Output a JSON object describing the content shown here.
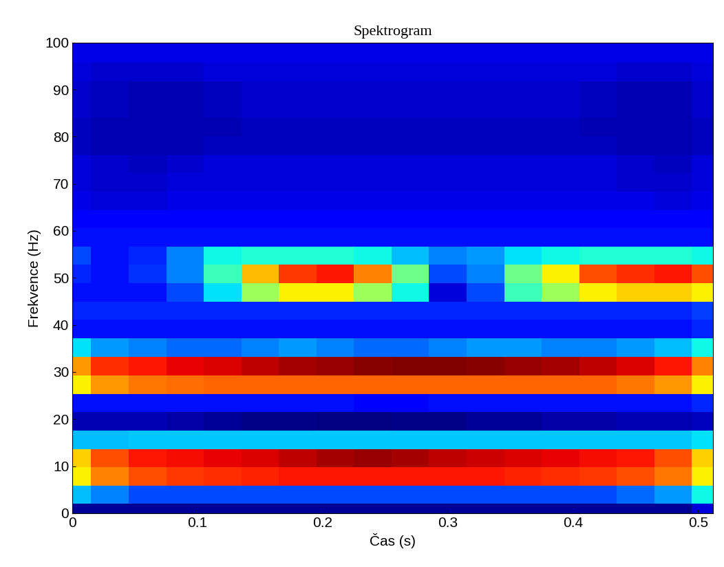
{
  "chart_data": {
    "type": "heatmap",
    "title": "Spektrogram",
    "x_label": "Čas (s)",
    "y_label": "Frekvence (Hz)",
    "xlim": [
      0,
      0.512
    ],
    "ylim": [
      0,
      100
    ],
    "xticks": [
      0,
      0.1,
      0.2,
      0.3,
      0.4,
      0.5
    ],
    "yticks": [
      0,
      10,
      20,
      30,
      40,
      50,
      60,
      70,
      80,
      90,
      100
    ],
    "x": [
      0,
      0.03,
      0.06,
      0.09,
      0.12,
      0.15,
      0.18,
      0.21,
      0.24,
      0.27,
      0.3,
      0.33,
      0.36,
      0.39,
      0.42,
      0.45,
      0.48,
      0.51
    ],
    "y": [
      0,
      3.9,
      7.8,
      11.7,
      15.6,
      19.5,
      23.4,
      27.3,
      31.3,
      35.2,
      39.1,
      43.0,
      46.9,
      50.8,
      54.7,
      58.6,
      62.5,
      66.4,
      70.3,
      74.2,
      78.1,
      82.0,
      85.9,
      89.8,
      93.8,
      97.7,
      101.6
    ],
    "cells": [
      [
        1,
        1,
        1,
        1,
        1,
        1,
        1,
        1,
        1,
        1,
        1,
        1,
        1,
        1,
        1,
        1,
        1,
        1.5
      ],
      [
        3.5,
        3,
        2.5,
        2.5,
        2.5,
        2.5,
        2.5,
        2.5,
        2.5,
        2.5,
        2.5,
        2.5,
        2.5,
        2.5,
        2.5,
        2.8,
        3.2,
        4
      ],
      [
        6.5,
        7.5,
        8,
        8.2,
        8.3,
        8.4,
        8.5,
        8.5,
        8.5,
        8.5,
        8.5,
        8.5,
        8.4,
        8.3,
        8.2,
        8,
        7.6,
        6.5
      ],
      [
        6.8,
        8,
        8.5,
        8.6,
        8.7,
        8.8,
        9,
        9.2,
        9.3,
        9.2,
        9,
        8.9,
        8.8,
        8.7,
        8.6,
        8.5,
        8,
        6.8
      ],
      [
        3.5,
        3.5,
        3.6,
        3.6,
        3.6,
        3.6,
        3.6,
        3.6,
        3.6,
        3.6,
        3.6,
        3.6,
        3.6,
        3.6,
        3.6,
        3.6,
        3.6,
        3.8
      ],
      [
        1.2,
        1.2,
        1.2,
        1.1,
        1,
        0.9,
        0.9,
        0.8,
        0.8,
        0.9,
        0.9,
        1,
        1,
        1.1,
        1.1,
        1.2,
        1.2,
        1.3
      ],
      [
        2,
        2,
        2,
        2,
        2,
        2,
        2,
        2,
        1.8,
        1.8,
        2,
        2,
        2,
        2,
        2,
        2,
        2,
        2.2
      ],
      [
        6.5,
        7.3,
        7.6,
        7.7,
        7.8,
        7.8,
        7.8,
        7.8,
        7.8,
        7.8,
        7.8,
        7.8,
        7.8,
        7.8,
        7.8,
        7.6,
        7.3,
        6.5
      ],
      [
        7.3,
        8.3,
        8.5,
        8.7,
        8.8,
        9,
        9.2,
        9.3,
        9.4,
        9.5,
        9.5,
        9.4,
        9.3,
        9.2,
        9,
        8.8,
        8.5,
        7.5
      ],
      [
        3.8,
        3.2,
        3,
        2.8,
        2.8,
        3,
        3.2,
        3,
        2.8,
        2.8,
        3,
        3.2,
        3.2,
        3,
        3,
        3.2,
        3.5,
        4
      ],
      [
        2,
        2,
        2,
        2,
        2,
        2,
        2,
        2,
        2,
        2,
        2,
        2,
        2,
        2,
        2,
        2,
        2,
        2.2
      ],
      [
        2.2,
        2.2,
        2.2,
        2.2,
        2.2,
        2.2,
        2.2,
        2.2,
        2.2,
        2.2,
        2.2,
        2.2,
        2.2,
        2.2,
        2.2,
        2.2,
        2.2,
        2.4
      ],
      [
        2,
        2,
        2,
        2.5,
        3.8,
        5.5,
        6.5,
        6.5,
        5.5,
        4,
        1.5,
        2.5,
        4.5,
        5.5,
        6.5,
        6.8,
        6.8,
        6.5
      ],
      [
        2.2,
        2,
        2.3,
        3,
        4.5,
        7,
        8.2,
        8.5,
        7.5,
        5,
        2.5,
        3,
        5,
        6.5,
        8,
        8.3,
        8.5,
        8
      ],
      [
        2.5,
        2,
        2.2,
        3,
        4,
        4.2,
        4.2,
        4.2,
        4,
        3.5,
        3,
        3.2,
        3.8,
        4,
        4.2,
        4.2,
        4.2,
        4
      ],
      [
        2,
        2,
        2,
        2,
        2,
        2,
        2,
        2,
        2,
        2,
        2,
        2,
        2,
        2,
        2,
        2,
        2,
        2
      ],
      [
        1.8,
        1.8,
        1.8,
        1.8,
        1.8,
        1.8,
        1.8,
        1.8,
        1.8,
        1.8,
        1.8,
        1.8,
        1.8,
        1.8,
        1.8,
        1.8,
        1.8,
        1.8
      ],
      [
        1.6,
        1.5,
        1.5,
        1.6,
        1.6,
        1.6,
        1.6,
        1.6,
        1.6,
        1.6,
        1.6,
        1.6,
        1.6,
        1.6,
        1.6,
        1.6,
        1.5,
        1.6
      ],
      [
        1.5,
        1.4,
        1.4,
        1.5,
        1.5,
        1.5,
        1.5,
        1.5,
        1.5,
        1.5,
        1.5,
        1.5,
        1.5,
        1.5,
        1.5,
        1.4,
        1.4,
        1.5
      ],
      [
        1.5,
        1.4,
        1.3,
        1.4,
        1.5,
        1.5,
        1.5,
        1.5,
        1.5,
        1.5,
        1.5,
        1.5,
        1.5,
        1.5,
        1.5,
        1.4,
        1.3,
        1.5
      ],
      [
        1.3,
        1.2,
        1.2,
        1.2,
        1.3,
        1.3,
        1.3,
        1.3,
        1.3,
        1.3,
        1.3,
        1.3,
        1.3,
        1.3,
        1.3,
        1.2,
        1.2,
        1.3
      ],
      [
        1.3,
        1.2,
        1.2,
        1.2,
        1.2,
        1.3,
        1.3,
        1.3,
        1.3,
        1.3,
        1.3,
        1.3,
        1.3,
        1.3,
        1.2,
        1.2,
        1.2,
        1.3
      ],
      [
        1.4,
        1.3,
        1.2,
        1.2,
        1.3,
        1.4,
        1.4,
        1.4,
        1.4,
        1.4,
        1.4,
        1.4,
        1.4,
        1.4,
        1.3,
        1.2,
        1.2,
        1.4
      ],
      [
        1.4,
        1.3,
        1.2,
        1.2,
        1.3,
        1.4,
        1.4,
        1.4,
        1.4,
        1.4,
        1.4,
        1.4,
        1.4,
        1.4,
        1.3,
        1.2,
        1.2,
        1.4
      ],
      [
        1.5,
        1.4,
        1.4,
        1.4,
        1.5,
        1.5,
        1.5,
        1.5,
        1.5,
        1.5,
        1.5,
        1.5,
        1.5,
        1.5,
        1.5,
        1.4,
        1.4,
        1.5
      ],
      [
        1.6,
        1.6,
        1.6,
        1.6,
        1.6,
        1.6,
        1.6,
        1.6,
        1.6,
        1.6,
        1.6,
        1.6,
        1.6,
        1.6,
        1.6,
        1.6,
        1.6,
        1.6
      ],
      [
        1.6,
        1.6,
        1.6,
        1.6,
        1.6,
        1.6,
        1.6,
        1.6,
        1.6,
        1.6,
        1.6,
        1.6,
        1.6,
        1.6,
        1.6,
        1.6,
        1.6,
        1.6
      ]
    ]
  }
}
